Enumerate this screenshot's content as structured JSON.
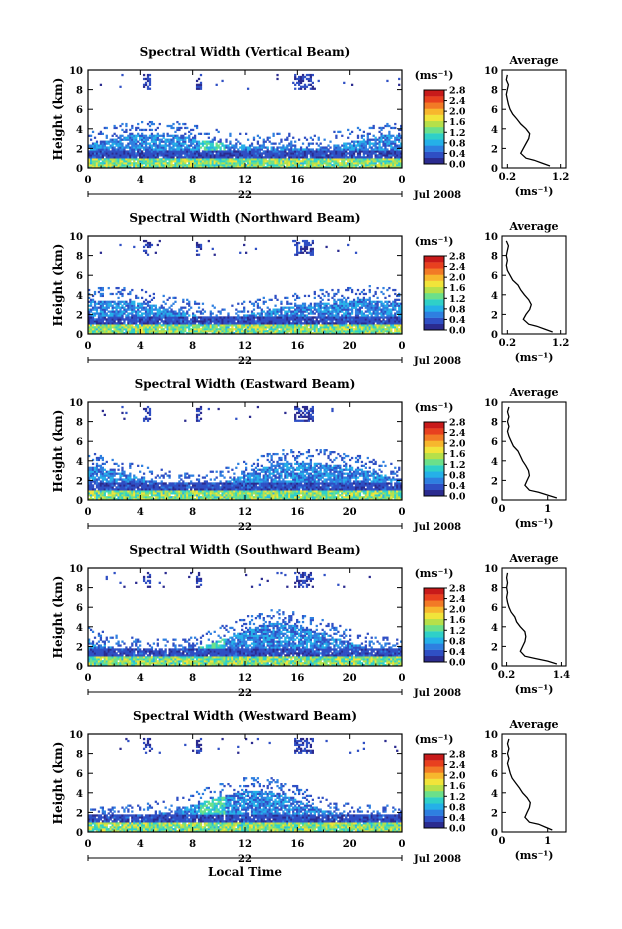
{
  "chart_data": [
    {
      "type": "heatmap",
      "title": "Spectral Width (Vertical Beam)",
      "ylabel": "Height (km)",
      "ylim": [
        0,
        10
      ],
      "yticks": [
        "0",
        "2",
        "4",
        "6",
        "8",
        "10"
      ],
      "xlim": [
        0,
        24
      ],
      "xticks": [
        "0",
        "4",
        "8",
        "12",
        "16",
        "20",
        "0"
      ],
      "day_label": "22",
      "date_label": "Jul 2008",
      "colorbar": {
        "unit": "(ms⁻¹)",
        "ticks": [
          "0.0",
          "0.4",
          "0.8",
          "1.2",
          "1.6",
          "2.0",
          "2.4",
          "2.8"
        ],
        "range": [
          0,
          2.8
        ]
      },
      "profile": {
        "title": "Average",
        "xticks": [
          "0.2",
          "1.2"
        ],
        "xlim": [
          0.1,
          1.3
        ],
        "xunit": "(ms⁻¹)",
        "heights": [
          0.2,
          0.5,
          0.8,
          1.0,
          1.5,
          2.0,
          2.5,
          3.0,
          3.5,
          4.0,
          4.5,
          5.0,
          5.5,
          6.0,
          6.5,
          7.0,
          7.5,
          8.0,
          8.5,
          9.0,
          9.5
        ],
        "values": [
          1.0,
          0.85,
          0.7,
          0.55,
          0.45,
          0.5,
          0.55,
          0.6,
          0.62,
          0.55,
          0.45,
          0.38,
          0.3,
          0.25,
          0.22,
          0.2,
          0.18,
          0.2,
          0.22,
          0.18,
          0.2
        ]
      }
    },
    {
      "type": "heatmap",
      "title": "Spectral Width (Northward Beam)",
      "ylabel": "Height (km)",
      "ylim": [
        0,
        10
      ],
      "yticks": [
        "0",
        "2",
        "4",
        "6",
        "8",
        "10"
      ],
      "xlim": [
        0,
        24
      ],
      "xticks": [
        "0",
        "4",
        "8",
        "12",
        "16",
        "20",
        "0"
      ],
      "day_label": "22",
      "date_label": "Jul 2008",
      "colorbar": {
        "unit": "(ms⁻¹)",
        "ticks": [
          "0.0",
          "0.4",
          "0.8",
          "1.2",
          "1.6",
          "2.0",
          "2.4",
          "2.8"
        ],
        "range": [
          0,
          2.8
        ]
      },
      "profile": {
        "title": "Average",
        "xticks": [
          "0.2",
          "1.2"
        ],
        "xlim": [
          0.1,
          1.3
        ],
        "xunit": "(ms⁻¹)",
        "heights": [
          0.2,
          0.5,
          0.8,
          1.0,
          1.5,
          2.0,
          2.5,
          3.0,
          3.5,
          4.0,
          4.5,
          5.0,
          5.5,
          6.0,
          6.5,
          7.0,
          7.5,
          8.0,
          8.5,
          9.0,
          9.5
        ],
        "values": [
          1.05,
          0.9,
          0.75,
          0.6,
          0.5,
          0.55,
          0.62,
          0.65,
          0.6,
          0.52,
          0.45,
          0.4,
          0.3,
          0.25,
          0.2,
          0.18,
          0.2,
          0.18,
          0.2,
          0.22,
          0.18
        ]
      }
    },
    {
      "type": "heatmap",
      "title": "Spectral Width (Eastward Beam)",
      "ylabel": "Height (km)",
      "ylim": [
        0,
        10
      ],
      "yticks": [
        "0",
        "2",
        "4",
        "6",
        "8",
        "10"
      ],
      "xlim": [
        0,
        24
      ],
      "xticks": [
        "0",
        "4",
        "8",
        "12",
        "16",
        "20",
        "0"
      ],
      "day_label": "22",
      "date_label": "Jul 2008",
      "colorbar": {
        "unit": "(ms⁻¹)",
        "ticks": [
          "0.0",
          "0.4",
          "0.8",
          "1.2",
          "1.6",
          "2.0",
          "2.4",
          "2.8"
        ],
        "range": [
          0,
          2.8
        ]
      },
      "profile": {
        "title": "Average",
        "xticks": [
          "0",
          "1"
        ],
        "xlim": [
          0,
          1.4
        ],
        "xunit": "(ms⁻¹)",
        "heights": [
          0.2,
          0.5,
          0.8,
          1.0,
          1.5,
          2.0,
          2.5,
          3.0,
          3.5,
          4.0,
          4.5,
          5.0,
          5.5,
          6.0,
          6.5,
          7.0,
          7.5,
          8.0,
          8.5,
          9.0,
          9.5
        ],
        "values": [
          1.2,
          1.0,
          0.8,
          0.6,
          0.5,
          0.55,
          0.6,
          0.58,
          0.52,
          0.45,
          0.4,
          0.35,
          0.25,
          0.2,
          0.15,
          0.12,
          0.15,
          0.12,
          0.15,
          0.12,
          0.15
        ]
      }
    },
    {
      "type": "heatmap",
      "title": "Spectral Width (Southward Beam)",
      "ylabel": "Height (km)",
      "ylim": [
        0,
        10
      ],
      "yticks": [
        "0",
        "2",
        "4",
        "6",
        "8",
        "10"
      ],
      "xlim": [
        0,
        24
      ],
      "xticks": [
        "0",
        "4",
        "8",
        "12",
        "16",
        "20",
        "0"
      ],
      "day_label": "22",
      "date_label": "Jul 2008",
      "colorbar": {
        "unit": "(ms⁻¹)",
        "ticks": [
          "0.0",
          "0.4",
          "0.8",
          "1.2",
          "1.6",
          "2.0",
          "2.4",
          "2.8"
        ],
        "range": [
          0,
          2.8
        ]
      },
      "profile": {
        "title": "Average",
        "xticks": [
          "0.2",
          "1.4"
        ],
        "xlim": [
          0.1,
          1.5
        ],
        "xunit": "(ms⁻¹)",
        "heights": [
          0.2,
          0.5,
          0.8,
          1.0,
          1.5,
          2.0,
          2.5,
          3.0,
          3.5,
          4.0,
          4.5,
          5.0,
          5.5,
          6.0,
          6.5,
          7.0,
          7.5,
          8.0,
          8.5,
          9.0,
          9.5
        ],
        "values": [
          1.3,
          1.1,
          0.8,
          0.6,
          0.5,
          0.55,
          0.6,
          0.62,
          0.6,
          0.5,
          0.42,
          0.38,
          0.3,
          0.25,
          0.22,
          0.2,
          0.22,
          0.2,
          0.22,
          0.2,
          0.22
        ]
      }
    },
    {
      "type": "heatmap",
      "title": "Spectral Width (Westward Beam)",
      "ylabel": "Height (km)",
      "ylim": [
        0,
        10
      ],
      "yticks": [
        "0",
        "2",
        "4",
        "6",
        "8",
        "10"
      ],
      "xlim": [
        0,
        24
      ],
      "xticks": [
        "0",
        "4",
        "8",
        "12",
        "16",
        "20",
        "0"
      ],
      "day_label": "22",
      "date_label": "Jul 2008",
      "xlabel": "Local Time",
      "colorbar": {
        "unit": "(ms⁻¹)",
        "ticks": [
          "0.0",
          "0.4",
          "0.8",
          "1.2",
          "1.6",
          "2.0",
          "2.4",
          "2.8"
        ],
        "range": [
          0,
          2.8
        ]
      },
      "profile": {
        "title": "Average",
        "xticks": [
          "0",
          "1"
        ],
        "xlim": [
          0,
          1.4
        ],
        "xunit": "(ms⁻¹)",
        "heights": [
          0.2,
          0.5,
          0.8,
          1.0,
          1.5,
          2.0,
          2.5,
          3.0,
          3.5,
          4.0,
          4.5,
          5.0,
          5.5,
          6.0,
          6.5,
          7.0,
          7.5,
          8.0,
          8.5,
          9.0,
          9.5
        ],
        "values": [
          1.1,
          0.95,
          0.8,
          0.6,
          0.5,
          0.55,
          0.6,
          0.62,
          0.55,
          0.45,
          0.38,
          0.3,
          0.22,
          0.18,
          0.15,
          0.12,
          0.15,
          0.12,
          0.15,
          0.12,
          0.15
        ]
      }
    }
  ],
  "colors": {
    "colormap": [
      "#2b2b8f",
      "#2f4fc4",
      "#2e7fe0",
      "#25b0e8",
      "#2fd0c8",
      "#6be08a",
      "#b6e04a",
      "#f1e43a",
      "#f7b72d",
      "#f27a26",
      "#e8401f",
      "#c81a1a"
    ]
  }
}
